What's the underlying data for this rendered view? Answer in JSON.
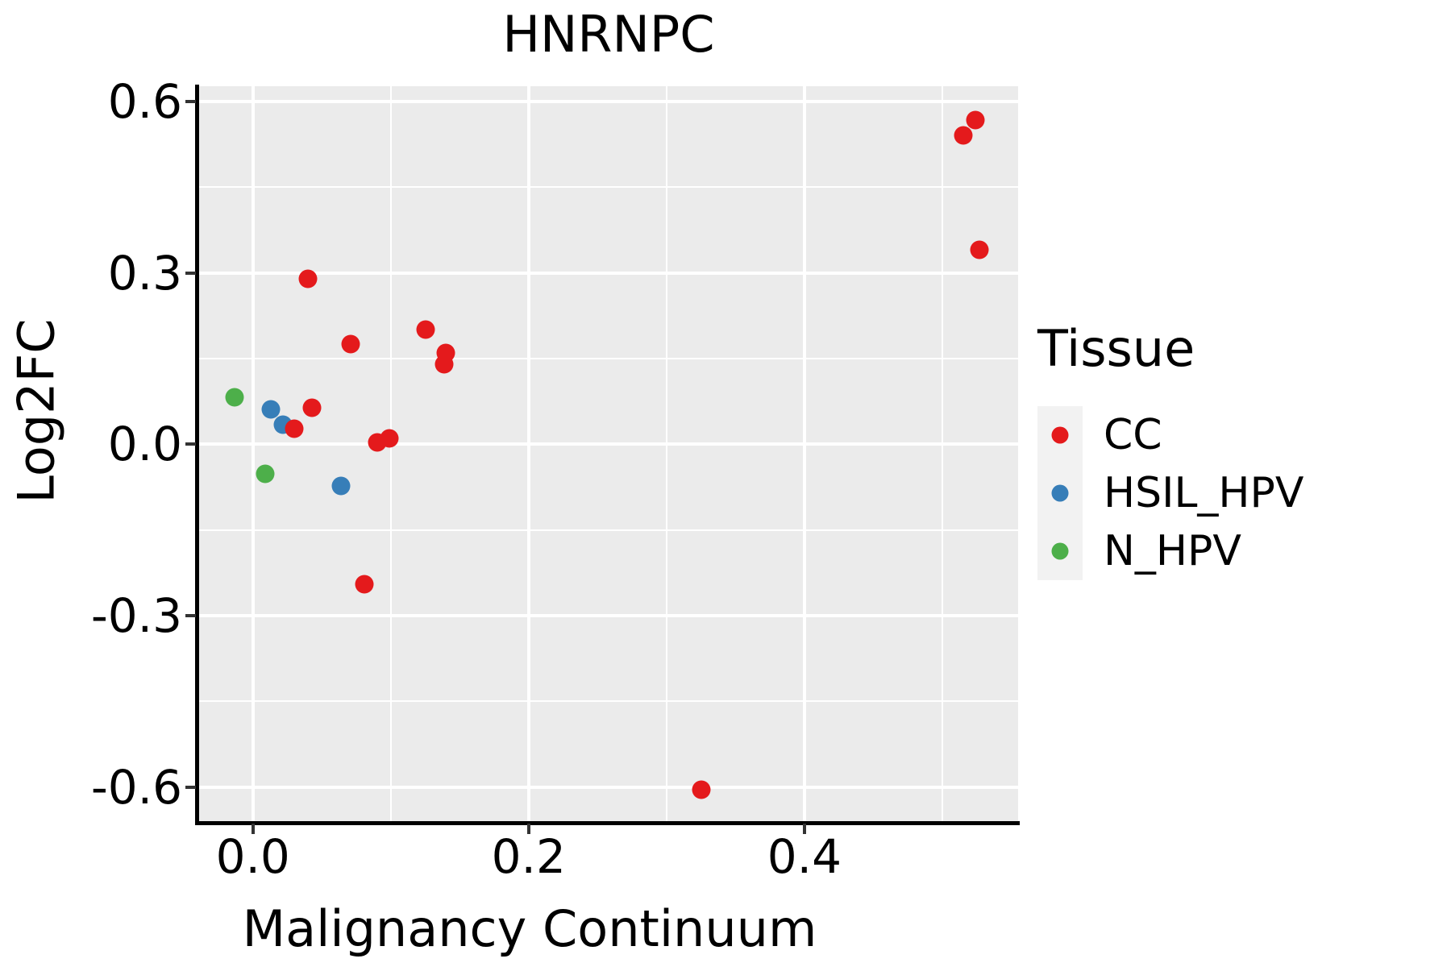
{
  "chart_data": {
    "type": "scatter",
    "title": "HNRNPC",
    "xlabel": "Malignancy Continuum",
    "ylabel": "Log2FC",
    "xlim": [
      -0.039,
      0.555
    ],
    "ylim": [
      -0.661,
      0.627
    ],
    "x_ticks": [
      0.0,
      0.2,
      0.4
    ],
    "x_tick_labels": [
      "0.0",
      "0.2",
      "0.4"
    ],
    "x_minor_gridlines": [
      0.1,
      0.3,
      0.5
    ],
    "y_ticks": [
      0.6,
      0.3,
      0.0,
      -0.3,
      -0.6
    ],
    "y_tick_labels": [
      "0.6",
      "0.3",
      "0.0",
      "-0.3",
      "-0.6"
    ],
    "y_minor_gridlines": [
      0.45,
      0.15,
      -0.15,
      -0.45
    ],
    "grid": true,
    "panel_bg": "#EBEBEB",
    "gridline_color": "#FFFFFF",
    "legend_position": "right",
    "legend_title": "Tissue",
    "legend_key_bg": "#F2F2F2",
    "series": [
      {
        "name": "CC",
        "color": "#E41A1C",
        "points": [
          [
            0.04,
            0.29
          ],
          [
            0.071,
            0.175
          ],
          [
            0.125,
            0.201
          ],
          [
            0.14,
            0.16
          ],
          [
            0.139,
            0.14
          ],
          [
            0.03,
            0.028
          ],
          [
            0.043,
            0.064
          ],
          [
            0.09,
            0.003
          ],
          [
            0.099,
            0.01
          ],
          [
            0.081,
            -0.245
          ],
          [
            0.325,
            -0.604
          ],
          [
            0.524,
            0.568
          ],
          [
            0.515,
            0.541
          ],
          [
            0.527,
            0.341
          ]
        ]
      },
      {
        "name": "HSIL_HPV",
        "color": "#377EB8",
        "points": [
          [
            0.013,
            0.062
          ],
          [
            0.022,
            0.034
          ],
          [
            0.064,
            -0.073
          ]
        ]
      },
      {
        "name": "N_HPV",
        "color": "#4DAF4A",
        "points": [
          [
            -0.013,
            0.082
          ],
          [
            0.009,
            -0.051
          ]
        ]
      }
    ]
  }
}
